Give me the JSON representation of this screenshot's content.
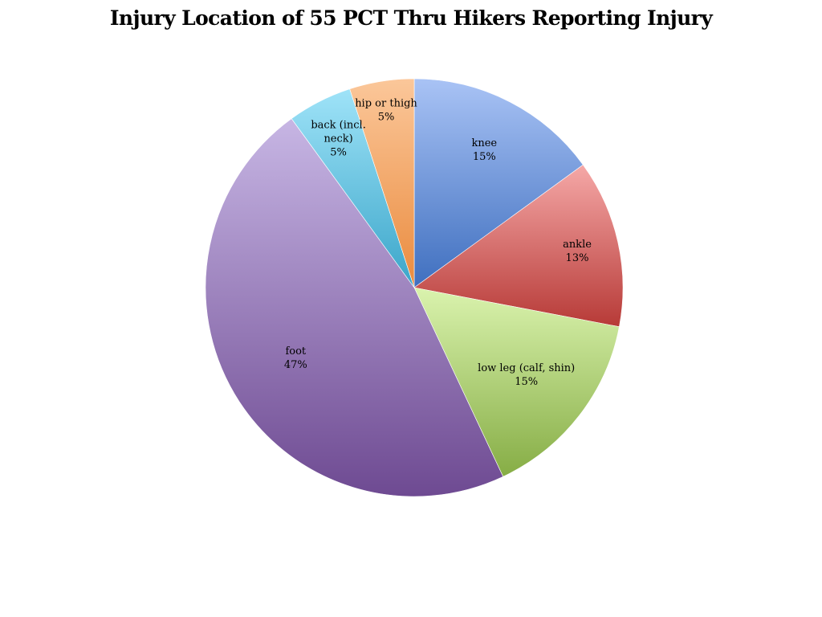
{
  "chart_data": {
    "type": "pie",
    "title": "Injury Location of 55 PCT Thru Hikers Reporting Injury",
    "start_angle_deg": 0,
    "direction": "clockwise",
    "legend": "none",
    "slices": [
      {
        "label": "knee",
        "label_lines": [
          "knee"
        ],
        "value": 15,
        "value_label": "15%",
        "color_light": "#a9c3f5",
        "color_dark": "#3f6fbf"
      },
      {
        "label": "ankle",
        "label_lines": [
          "ankle"
        ],
        "value": 13,
        "value_label": "13%",
        "color_light": "#f5a8a7",
        "color_dark": "#b73a37"
      },
      {
        "label": "low leg (calf, shin)",
        "label_lines": [
          "low leg (calf, shin)"
        ],
        "value": 15,
        "value_label": "15%",
        "color_light": "#daf3ae",
        "color_dark": "#86ad45"
      },
      {
        "label": "foot",
        "label_lines": [
          "foot"
        ],
        "value": 47,
        "value_label": "47%",
        "color_light": "#c7b6e4",
        "color_dark": "#6e4a92"
      },
      {
        "label": "back (incl. neck)",
        "label_lines": [
          "back (incl.",
          "neck)"
        ],
        "value": 5,
        "value_label": "5%",
        "color_light": "#9fe3f8",
        "color_dark": "#3aa5c9"
      },
      {
        "label": "hip or thigh",
        "label_lines": [
          "hip or thigh"
        ],
        "value": 5,
        "value_label": "5%",
        "color_light": "#fbc79a",
        "color_dark": "#ea8b3e"
      }
    ]
  }
}
